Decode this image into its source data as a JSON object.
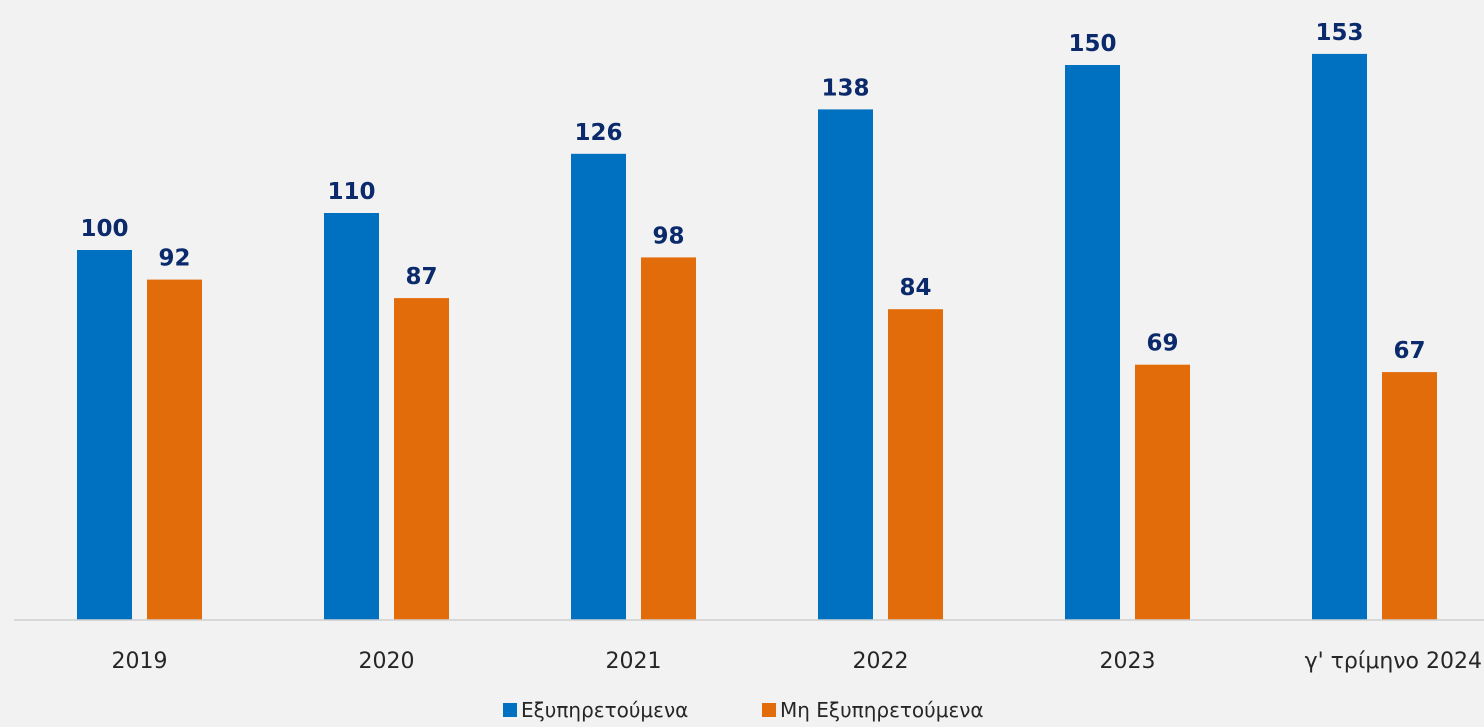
{
  "chart_data": {
    "type": "bar",
    "title": "",
    "xlabel": "",
    "ylabel": "",
    "categories": [
      "2019",
      "2020",
      "2021",
      "2022",
      "2023",
      "γ' τρίμηνο 2024"
    ],
    "series": [
      {
        "name": "Εξυπηρετούμενα",
        "values": [
          100,
          110,
          126,
          138,
          150,
          153
        ],
        "color": "#0070c0"
      },
      {
        "name": "Μη Εξυπηρετούμενα",
        "values": [
          92,
          87,
          98,
          84,
          69,
          67
        ],
        "color": "#e36c0a"
      }
    ],
    "ylim": [
      0,
      170
    ],
    "grid": false,
    "legend": "bottom-center",
    "value_label_color": "#0b2a6b"
  }
}
